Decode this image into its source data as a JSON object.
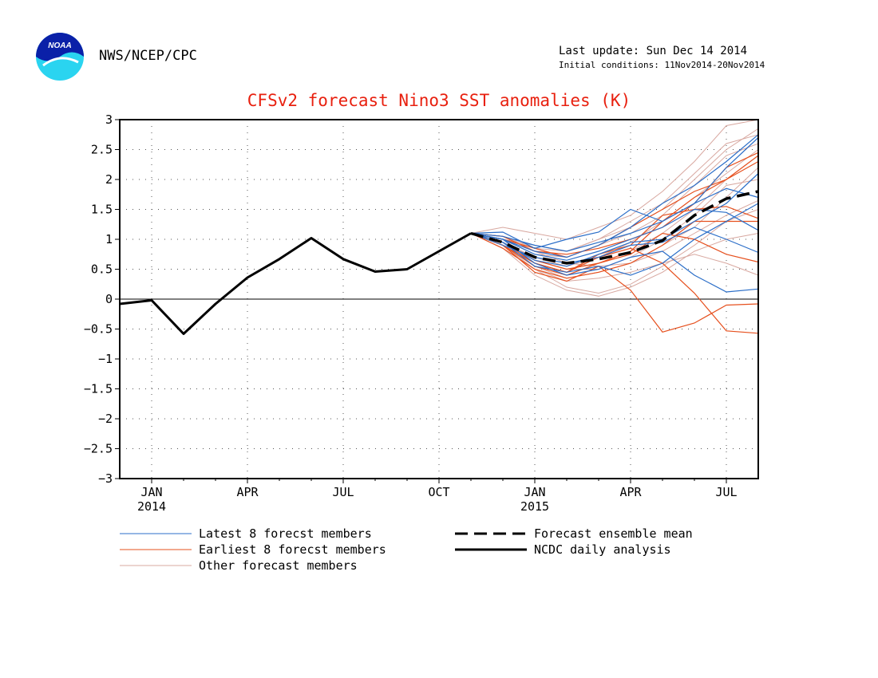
{
  "header": {
    "agency": "NWS/NCEP/CPC",
    "logo_text": "NOAA",
    "last_update": "Last update: Sun Dec 14 2014",
    "initial_conditions": "Initial conditions: 11Nov2014-20Nov2014"
  },
  "colors": {
    "title": "#e8200f",
    "latest": "#2b6ec8",
    "earliest": "#e6501e",
    "other": "#d8a8a0",
    "mean": "#000000",
    "analysis": "#000000"
  },
  "chart_data": {
    "type": "line",
    "title": "CFSv2 forecast Nino3 SST anomalies (K)",
    "xlabel": "",
    "ylabel": "",
    "xlim": [
      "2013-12",
      "2015-08"
    ],
    "ylim": [
      -3,
      3
    ],
    "y_ticks": [
      -3,
      -2.5,
      -2,
      -1.5,
      -1,
      -0.5,
      0,
      0.5,
      1,
      1.5,
      2,
      2.5,
      3
    ],
    "y_tick_labels": [
      "−3",
      "−2.5",
      "−2",
      "−1.5",
      "−1",
      "−0.5",
      "0",
      "0.5",
      "1",
      "1.5",
      "2",
      "2.5",
      "3"
    ],
    "x_ticks": [
      {
        "date": "2014-01",
        "label": "JAN",
        "year": "2014"
      },
      {
        "date": "2014-04",
        "label": "APR",
        "year": ""
      },
      {
        "date": "2014-07",
        "label": "JUL",
        "year": ""
      },
      {
        "date": "2014-10",
        "label": "OCT",
        "year": ""
      },
      {
        "date": "2015-01",
        "label": "JAN",
        "year": "2015"
      },
      {
        "date": "2015-04",
        "label": "APR",
        "year": ""
      },
      {
        "date": "2015-07",
        "label": "JUL",
        "year": ""
      }
    ],
    "grid": true,
    "zero_line": true,
    "legend": [
      {
        "label": "Latest 8 forecst members",
        "series": "latest"
      },
      {
        "label": "Earliest 8 forecst members",
        "series": "earliest"
      },
      {
        "label": "Other forecast members",
        "series": "other"
      },
      {
        "label": "Forecast ensemble mean",
        "series": "mean"
      },
      {
        "label": "NCDC daily analysis",
        "series": "analysis"
      }
    ],
    "analysis": {
      "x": [
        "2013-12",
        "2014-01",
        "2014-02",
        "2014-03",
        "2014-04",
        "2014-05",
        "2014-06",
        "2014-07",
        "2014-08",
        "2014-09",
        "2014-10",
        "2014-11"
      ],
      "y": [
        -0.08,
        -0.02,
        -0.58,
        -0.08,
        0.36,
        0.67,
        1.02,
        0.67,
        0.46,
        0.5,
        0.8,
        1.1
      ]
    },
    "ensemble_mean": {
      "x": [
        "2014-11",
        "2014-12",
        "2015-01",
        "2015-02",
        "2015-03",
        "2015-04",
        "2015-05",
        "2015-06",
        "2015-07",
        "2015-08"
      ],
      "y": [
        1.1,
        0.95,
        0.7,
        0.6,
        0.67,
        0.78,
        0.98,
        1.4,
        1.68,
        1.8
      ]
    },
    "member_x": [
      "2014-11",
      "2014-12",
      "2015-01",
      "2015-02",
      "2015-03",
      "2015-04",
      "2015-05",
      "2015-06",
      "2015-07",
      "2015-08"
    ],
    "latest_members": [
      [
        1.1,
        1.12,
        0.85,
        1.0,
        1.12,
        1.5,
        1.3,
        1.6,
        2.2,
        2.7
      ],
      [
        1.1,
        1.0,
        0.8,
        0.7,
        0.9,
        1.2,
        1.6,
        1.9,
        2.3,
        2.75
      ],
      [
        1.1,
        0.95,
        0.55,
        0.45,
        0.55,
        0.4,
        0.6,
        1.0,
        1.3,
        1.6
      ],
      [
        1.1,
        1.0,
        0.6,
        0.4,
        0.5,
        0.7,
        0.8,
        0.4,
        0.12,
        0.17
      ],
      [
        1.1,
        0.9,
        0.7,
        0.6,
        0.7,
        0.9,
        0.95,
        1.2,
        1.0,
        0.78
      ],
      [
        1.1,
        1.05,
        0.9,
        0.8,
        0.95,
        1.1,
        1.3,
        1.6,
        1.85,
        1.7
      ],
      [
        1.1,
        1.0,
        0.75,
        0.65,
        0.8,
        1.0,
        1.2,
        1.5,
        1.45,
        1.15
      ],
      [
        1.1,
        0.95,
        0.65,
        0.55,
        0.75,
        0.95,
        1.0,
        1.3,
        1.6,
        2.1
      ]
    ],
    "earliest_members": [
      [
        1.1,
        0.9,
        0.45,
        0.3,
        0.55,
        0.15,
        -0.55,
        -0.4,
        -0.1,
        -0.08
      ],
      [
        1.1,
        0.95,
        0.6,
        0.45,
        0.7,
        0.85,
        0.6,
        0.1,
        -0.53,
        -0.57
      ],
      [
        1.1,
        1.0,
        0.85,
        0.7,
        0.9,
        1.2,
        1.5,
        1.8,
        2.0,
        2.3
      ],
      [
        1.1,
        0.85,
        0.5,
        0.35,
        0.45,
        0.6,
        0.9,
        1.3,
        1.3,
        1.3
      ],
      [
        1.1,
        0.9,
        0.55,
        0.4,
        0.6,
        0.75,
        1.1,
        1.0,
        0.75,
        0.62
      ],
      [
        1.1,
        1.05,
        0.8,
        0.75,
        0.85,
        1.0,
        1.2,
        1.6,
        2.2,
        2.45
      ],
      [
        1.1,
        0.95,
        0.65,
        0.5,
        0.6,
        0.8,
        1.3,
        1.7,
        2.0,
        2.4
      ],
      [
        1.1,
        0.9,
        0.6,
        0.45,
        0.75,
        0.9,
        1.4,
        1.5,
        1.55,
        1.35
      ]
    ],
    "other_members": [
      [
        1.1,
        1.2,
        1.1,
        1.0,
        1.2,
        1.4,
        1.8,
        2.3,
        2.9,
        3.0
      ],
      [
        1.1,
        1.0,
        0.9,
        0.8,
        1.0,
        1.2,
        1.5,
        2.0,
        2.5,
        2.85
      ],
      [
        1.1,
        0.9,
        0.5,
        0.2,
        0.1,
        0.25,
        0.55,
        0.9,
        1.3,
        1.5
      ],
      [
        1.1,
        0.95,
        0.6,
        0.4,
        0.6,
        0.8,
        1.1,
        1.5,
        2.0,
        2.4
      ],
      [
        1.1,
        1.05,
        0.8,
        0.6,
        0.55,
        0.6,
        0.8,
        1.1,
        1.4,
        1.65
      ],
      [
        1.1,
        0.85,
        0.4,
        0.15,
        0.05,
        0.2,
        0.45,
        0.8,
        1.0,
        1.1
      ],
      [
        1.1,
        1.0,
        0.75,
        0.7,
        0.9,
        1.1,
        1.4,
        1.9,
        2.4,
        2.6
      ],
      [
        1.1,
        0.9,
        0.55,
        0.35,
        0.45,
        0.6,
        0.9,
        1.2,
        1.7,
        2.2
      ],
      [
        1.1,
        0.95,
        0.7,
        0.55,
        0.7,
        0.95,
        1.3,
        1.7,
        2.1,
        2.5
      ],
      [
        1.1,
        1.0,
        0.65,
        0.5,
        0.5,
        0.7,
        1.0,
        1.4,
        1.9,
        2.0
      ],
      [
        1.1,
        0.9,
        0.5,
        0.3,
        0.35,
        0.45,
        0.6,
        0.75,
        0.6,
        0.4
      ],
      [
        1.1,
        1.05,
        0.85,
        0.8,
        1.0,
        1.3,
        1.6,
        2.1,
        2.6,
        2.75
      ]
    ]
  }
}
